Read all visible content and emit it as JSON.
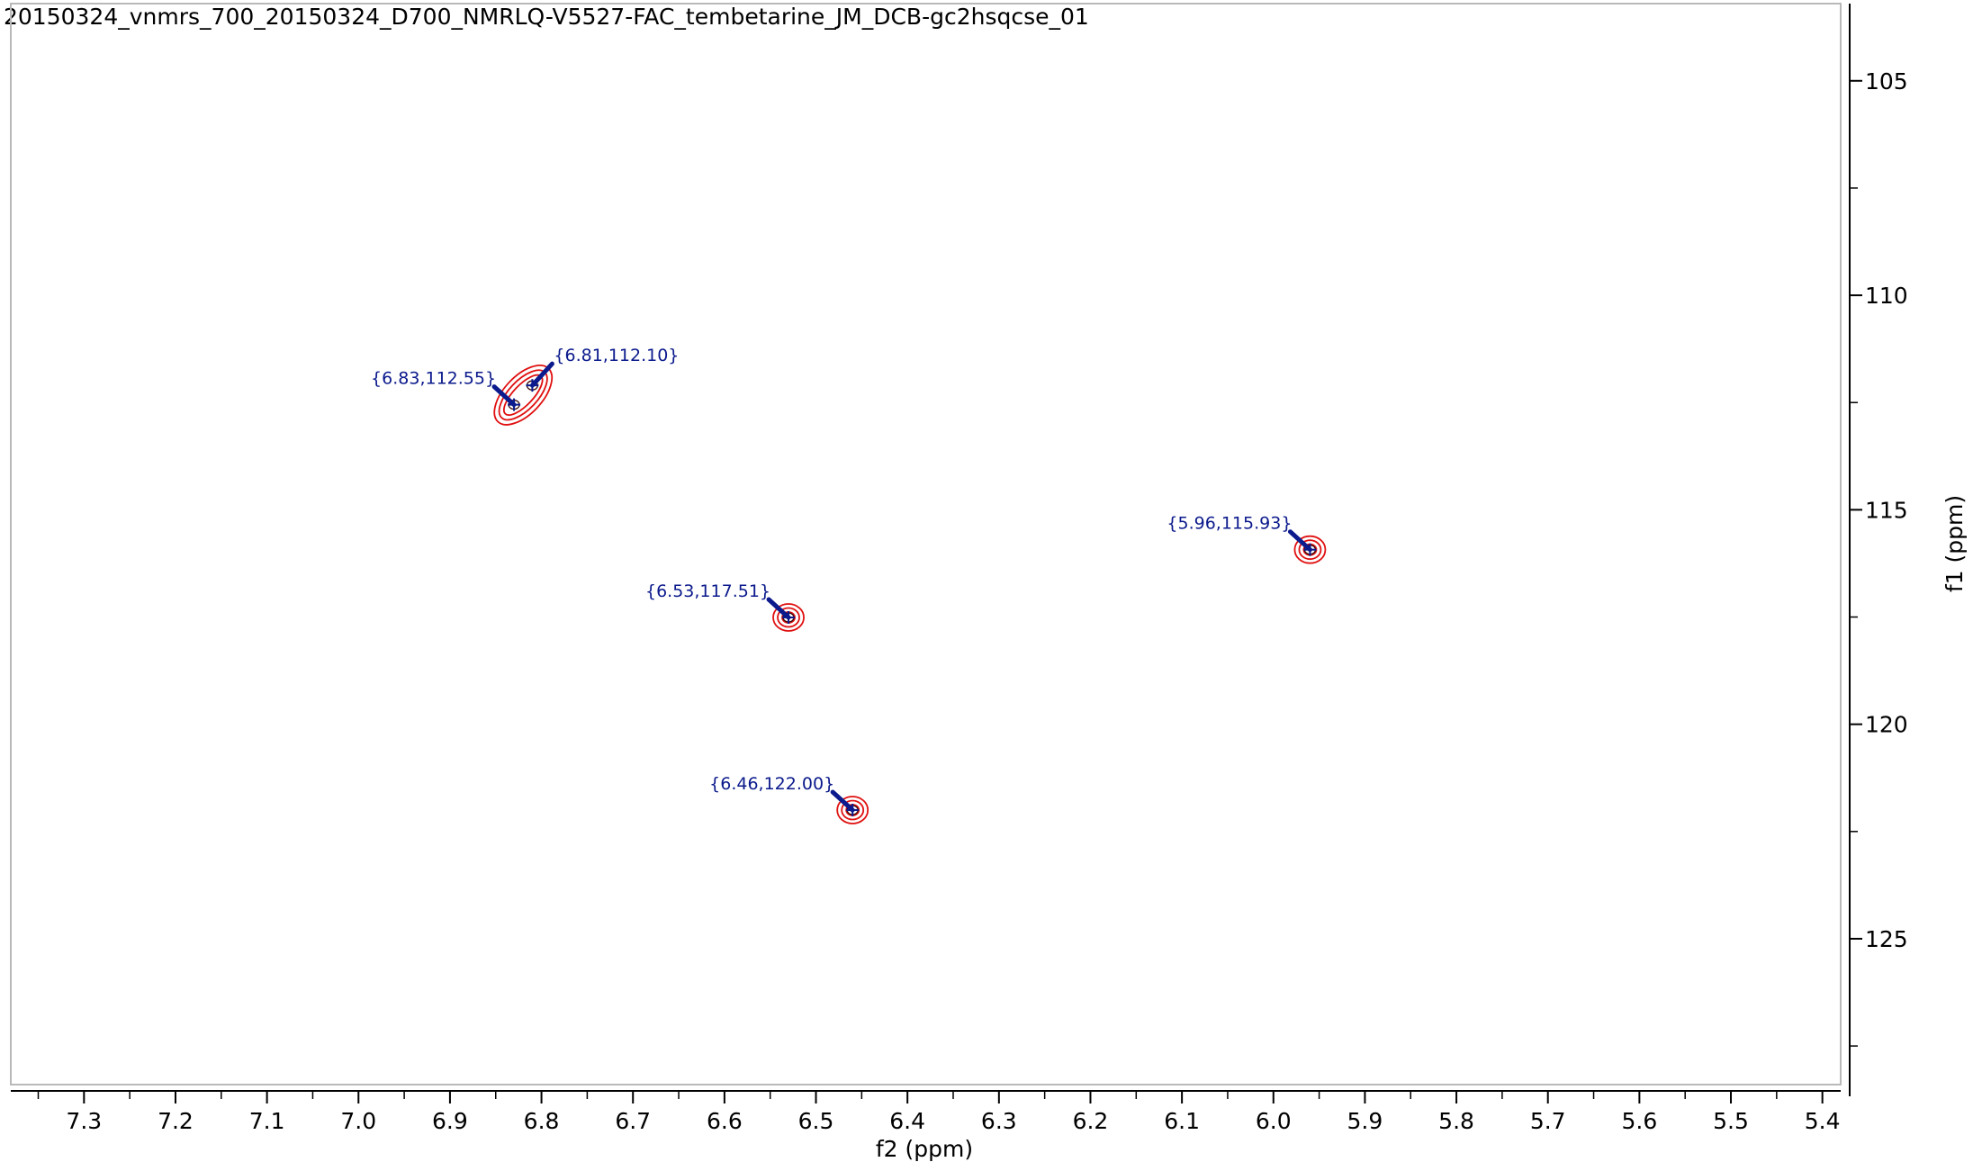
{
  "title": "20150324_vnmrs_700_20150324_D700_NMRLQ-V5527-FAC_tembetarine_JM_DCB-gc2hsqcse_01",
  "chart_data": {
    "type": "scatter",
    "title": "20150324_vnmrs_700_20150324_D700_NMRLQ-V5527-FAC_tembetarine_JM_DCB-gc2hsqcse_01",
    "xlabel": "f2 (ppm)",
    "ylabel": "f1 (ppm)",
    "x_reversed": true,
    "xlim": [
      7.38,
      5.38
    ],
    "ylim": [
      103.2,
      128.4
    ],
    "xticks": [
      7.3,
      7.2,
      7.1,
      7.0,
      6.9,
      6.8,
      6.7,
      6.6,
      6.5,
      6.4,
      6.3,
      6.2,
      6.1,
      6.0,
      5.9,
      5.8,
      5.7,
      5.6,
      5.5,
      5.4
    ],
    "xtick_labels": [
      "7.3",
      "7.2",
      "7.1",
      "7.0",
      "6.9",
      "6.8",
      "6.7",
      "6.6",
      "6.5",
      "6.4",
      "6.3",
      "6.2",
      "6.1",
      "6.0",
      "5.9",
      "5.8",
      "5.7",
      "5.6",
      "5.5",
      "5.4"
    ],
    "yticks": [
      105,
      110,
      115,
      120,
      125
    ],
    "ytick_labels": [
      "105",
      "110",
      "115",
      "120",
      "125"
    ],
    "grid": false,
    "contour_color": "#e01010",
    "label_color": "#0b1a8c",
    "contours": [
      {
        "x": 6.83,
        "y": 112.55
      },
      {
        "x": 6.81,
        "y": 112.1
      },
      {
        "x": 6.53,
        "y": 117.51
      },
      {
        "x": 6.46,
        "y": 122.0
      },
      {
        "x": 5.96,
        "y": 115.93
      }
    ],
    "peaks": [
      {
        "x": 6.83,
        "y": 112.55,
        "label": "{6.83,112.55}",
        "side": "left"
      },
      {
        "x": 6.81,
        "y": 112.1,
        "label": "{6.81,112.10}",
        "side": "right"
      },
      {
        "x": 6.53,
        "y": 117.51,
        "label": "{6.53,117.51}",
        "side": "left"
      },
      {
        "x": 6.46,
        "y": 122.0,
        "label": "{6.46,122.00}",
        "side": "left"
      },
      {
        "x": 5.96,
        "y": 115.93,
        "label": "{5.96,115.93}",
        "side": "left"
      }
    ]
  }
}
